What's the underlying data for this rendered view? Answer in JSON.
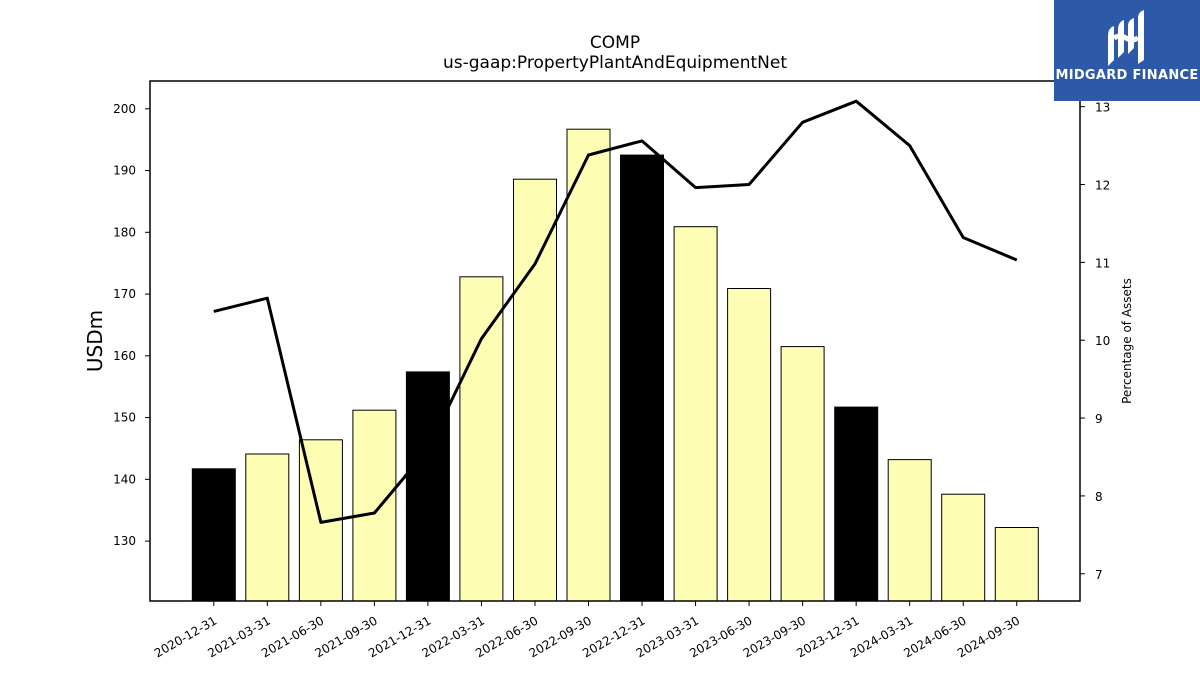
{
  "logo": {
    "text": "MIDGARD FINANCE",
    "color": "#2c5aa8",
    "icon": "midgard-logo-icon"
  },
  "chart_data": {
    "type": "bar",
    "title": "COMP",
    "subtitle": "us-gaap:PropertyPlantAndEquipmentNet",
    "ylabel": "USDm",
    "ylabel_right": "Percentage of Assets",
    "categories": [
      "2020-12-31",
      "2021-03-31",
      "2021-06-30",
      "2021-09-30",
      "2021-12-31",
      "2022-03-31",
      "2022-06-30",
      "2022-09-30",
      "2022-12-31",
      "2023-03-31",
      "2023-06-30",
      "2023-09-30",
      "2023-12-31",
      "2024-03-31",
      "2024-06-30",
      "2024-09-30"
    ],
    "series": [
      {
        "type": "bar",
        "axis": "left",
        "values": [
          141.7,
          144.1,
          146.4,
          151.2,
          157.4,
          172.8,
          188.6,
          196.7,
          192.5,
          180.9,
          170.9,
          161.5,
          151.7,
          143.2,
          137.6,
          132.2
        ],
        "colors": [
          "#000000",
          "#fdfdb4",
          "#fdfdb4",
          "#fdfdb4",
          "#000000",
          "#fdfdb4",
          "#fdfdb4",
          "#fdfdb4",
          "#000000",
          "#fdfdb4",
          "#fdfdb4",
          "#fdfdb4",
          "#000000",
          "#fdfdb4",
          "#fdfdb4",
          "#fdfdb4"
        ]
      },
      {
        "type": "line",
        "axis": "right",
        "values": [
          10.37,
          10.54,
          7.66,
          7.78,
          8.6,
          10.02,
          10.98,
          12.38,
          12.56,
          11.96,
          12.0,
          12.8,
          13.07,
          12.5,
          11.32,
          11.03
        ]
      }
    ],
    "ylim": [
      120.3,
      204.5
    ],
    "yticks": [
      130,
      140,
      150,
      160,
      170,
      180,
      190,
      200
    ],
    "ylim_right": [
      6.65,
      13.33
    ],
    "yticks_right": [
      7,
      8,
      9,
      10,
      11,
      12,
      13
    ],
    "grid": false,
    "legend": "none"
  }
}
